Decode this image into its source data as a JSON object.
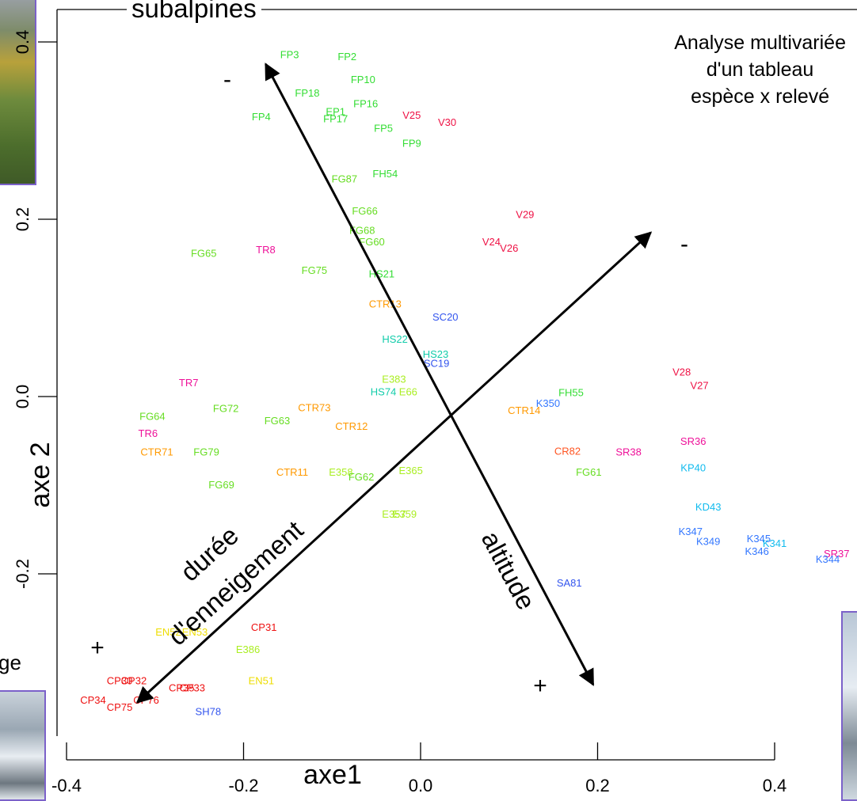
{
  "chart_data": {
    "type": "scatter",
    "xlabel": "axe1",
    "ylabel": "axe 2",
    "xlim": [
      -0.4,
      0.5
    ],
    "ylim": [
      -0.36,
      0.42
    ],
    "x_ticks": [
      -0.4,
      -0.2,
      0.0,
      0.2,
      0.4
    ],
    "x_tick_labels": [
      "-0.4",
      "-0.2",
      "0.0",
      "0.2",
      "0.4"
    ],
    "y_ticks": [
      -0.2,
      0.0,
      0.2,
      0.4
    ],
    "y_tick_labels": [
      "-0.2",
      "0.0",
      "0.2",
      "0.4"
    ],
    "grid": false,
    "annotation_top": "subalpines",
    "annotation_right": "Analyse multivariée\nd'un tableau\nespèce x relevé",
    "annotation_left_fragment": "ge",
    "arrows": [
      {
        "name": "altitude",
        "label": "altitude",
        "from": [
          0.195,
          -0.325
        ],
        "to": [
          -0.175,
          0.375
        ],
        "head_at": "both",
        "sign_start": "+",
        "sign_end": "-"
      },
      {
        "name": "enneigement",
        "label_line1": "durée",
        "label_line2": "d'enneigement",
        "from": [
          -0.32,
          -0.345
        ],
        "to": [
          0.26,
          0.185
        ],
        "head_at": "both",
        "sign_start": "+",
        "sign_end": "-"
      }
    ],
    "point_labels": [
      {
        "label": "FP3",
        "x": -0.148,
        "y": 0.386,
        "color": "#33dd33"
      },
      {
        "label": "FP2",
        "x": -0.083,
        "y": 0.384,
        "color": "#33dd33"
      },
      {
        "label": "FP18",
        "x": -0.128,
        "y": 0.343,
        "color": "#33dd33"
      },
      {
        "label": "FP10",
        "x": -0.065,
        "y": 0.358,
        "color": "#33dd33"
      },
      {
        "label": "EP1",
        "x": -0.096,
        "y": 0.322,
        "color": "#33dd33"
      },
      {
        "label": "FP16",
        "x": -0.062,
        "y": 0.331,
        "color": "#33dd33"
      },
      {
        "label": "FP17",
        "x": -0.096,
        "y": 0.314,
        "color": "#33dd33"
      },
      {
        "label": "FP4",
        "x": -0.18,
        "y": 0.316,
        "color": "#33dd33"
      },
      {
        "label": "FP5",
        "x": -0.042,
        "y": 0.303,
        "color": "#33dd33"
      },
      {
        "label": "V25",
        "x": -0.01,
        "y": 0.318,
        "color": "#ee1144"
      },
      {
        "label": "V30",
        "x": 0.03,
        "y": 0.31,
        "color": "#ee1144"
      },
      {
        "label": "FP9",
        "x": -0.01,
        "y": 0.286,
        "color": "#33dd33"
      },
      {
        "label": "FG87",
        "x": -0.086,
        "y": 0.246,
        "color": "#66dd22"
      },
      {
        "label": "FH54",
        "x": -0.04,
        "y": 0.252,
        "color": "#33dd33"
      },
      {
        "label": "FG66",
        "x": -0.063,
        "y": 0.21,
        "color": "#66dd22"
      },
      {
        "label": "V29",
        "x": 0.118,
        "y": 0.206,
        "color": "#ee1144"
      },
      {
        "label": "FG68",
        "x": -0.066,
        "y": 0.188,
        "color": "#66dd22"
      },
      {
        "label": "FG60",
        "x": -0.055,
        "y": 0.175,
        "color": "#66dd22"
      },
      {
        "label": "V24",
        "x": 0.08,
        "y": 0.175,
        "color": "#ee1144"
      },
      {
        "label": "V26",
        "x": 0.1,
        "y": 0.168,
        "color": "#ee1144"
      },
      {
        "label": "TR8",
        "x": -0.175,
        "y": 0.166,
        "color": "#ee1199"
      },
      {
        "label": "FG65",
        "x": -0.245,
        "y": 0.162,
        "color": "#66dd22"
      },
      {
        "label": "FG75",
        "x": -0.12,
        "y": 0.143,
        "color": "#66dd22"
      },
      {
        "label": "HS21",
        "x": -0.044,
        "y": 0.139,
        "color": "#33dd33"
      },
      {
        "label": "CTR13",
        "x": -0.04,
        "y": 0.105,
        "color": "#ff9900"
      },
      {
        "label": "SC20",
        "x": 0.028,
        "y": 0.09,
        "color": "#3355ee"
      },
      {
        "label": "HS22",
        "x": -0.029,
        "y": 0.065,
        "color": "#11ccaa"
      },
      {
        "label": "HS23",
        "x": 0.017,
        "y": 0.048,
        "color": "#11ccaa"
      },
      {
        "label": "SC19",
        "x": 0.018,
        "y": 0.038,
        "color": "#3355ee"
      },
      {
        "label": "E383",
        "x": -0.03,
        "y": 0.02,
        "color": "#aaee22"
      },
      {
        "label": "HS74",
        "x": -0.042,
        "y": 0.006,
        "color": "#11ccaa"
      },
      {
        "label": "E66",
        "x": -0.014,
        "y": 0.006,
        "color": "#aaee22"
      },
      {
        "label": "TR7",
        "x": -0.262,
        "y": 0.016,
        "color": "#ee1199"
      },
      {
        "label": "V28",
        "x": 0.295,
        "y": 0.028,
        "color": "#ee1144"
      },
      {
        "label": "V27",
        "x": 0.315,
        "y": 0.013,
        "color": "#ee1144"
      },
      {
        "label": "FH55",
        "x": 0.17,
        "y": 0.005,
        "color": "#33dd33"
      },
      {
        "label": "K350",
        "x": 0.144,
        "y": -0.007,
        "color": "#3377ff"
      },
      {
        "label": "CTR14",
        "x": 0.117,
        "y": -0.015,
        "color": "#ff9900"
      },
      {
        "label": "CTR73",
        "x": -0.12,
        "y": -0.012,
        "color": "#ff9900"
      },
      {
        "label": "FG72",
        "x": -0.22,
        "y": -0.013,
        "color": "#66dd22"
      },
      {
        "label": "FG64",
        "x": -0.303,
        "y": -0.022,
        "color": "#66dd22"
      },
      {
        "label": "FG63",
        "x": -0.162,
        "y": -0.027,
        "color": "#66dd22"
      },
      {
        "label": "CTR12",
        "x": -0.078,
        "y": -0.033,
        "color": "#ff9900"
      },
      {
        "label": "TR6",
        "x": -0.308,
        "y": -0.041,
        "color": "#ee1199"
      },
      {
        "label": "SR36",
        "x": 0.308,
        "y": -0.05,
        "color": "#ee1199"
      },
      {
        "label": "CTR71",
        "x": -0.298,
        "y": -0.062,
        "color": "#ff9900"
      },
      {
        "label": "FG79",
        "x": -0.242,
        "y": -0.062,
        "color": "#66dd22"
      },
      {
        "label": "CR82",
        "x": 0.166,
        "y": -0.061,
        "color": "#ff5522"
      },
      {
        "label": "SR38",
        "x": 0.235,
        "y": -0.062,
        "color": "#ee1199"
      },
      {
        "label": "KP40",
        "x": 0.308,
        "y": -0.08,
        "color": "#11bbee"
      },
      {
        "label": "FG61",
        "x": 0.19,
        "y": -0.085,
        "color": "#66dd22"
      },
      {
        "label": "CTR11",
        "x": -0.145,
        "y": -0.085,
        "color": "#ff9900"
      },
      {
        "label": "E358",
        "x": -0.09,
        "y": -0.085,
        "color": "#aaee22"
      },
      {
        "label": "FG62",
        "x": -0.067,
        "y": -0.09,
        "color": "#66dd22"
      },
      {
        "label": "E365",
        "x": -0.011,
        "y": -0.083,
        "color": "#aaee22"
      },
      {
        "label": "FG69",
        "x": -0.225,
        "y": -0.099,
        "color": "#66dd22"
      },
      {
        "label": "KD43",
        "x": 0.325,
        "y": -0.124,
        "color": "#11bbee"
      },
      {
        "label": "E357",
        "x": -0.03,
        "y": -0.132,
        "color": "#aaee22"
      },
      {
        "label": "E359",
        "x": -0.018,
        "y": -0.132,
        "color": "#aaee22"
      },
      {
        "label": "K347",
        "x": 0.305,
        "y": -0.152,
        "color": "#3377ff"
      },
      {
        "label": "K349",
        "x": 0.325,
        "y": -0.163,
        "color": "#3377ff"
      },
      {
        "label": "K345",
        "x": 0.382,
        "y": -0.16,
        "color": "#3377ff"
      },
      {
        "label": "K341",
        "x": 0.4,
        "y": -0.165,
        "color": "#11bbee"
      },
      {
        "label": "K346",
        "x": 0.38,
        "y": -0.174,
        "color": "#3377ff"
      },
      {
        "label": "SR37",
        "x": 0.47,
        "y": -0.177,
        "color": "#ee1199"
      },
      {
        "label": "K344",
        "x": 0.46,
        "y": -0.183,
        "color": "#3377ff"
      },
      {
        "label": "SA81",
        "x": 0.168,
        "y": -0.21,
        "color": "#3355ee"
      },
      {
        "label": "CP31",
        "x": -0.177,
        "y": -0.26,
        "color": "#ee1111"
      },
      {
        "label": "EN52",
        "x": -0.285,
        "y": -0.265,
        "color": "#eedd00"
      },
      {
        "label": "EN53",
        "x": -0.255,
        "y": -0.265,
        "color": "#eedd00"
      },
      {
        "label": "E386",
        "x": -0.195,
        "y": -0.285,
        "color": "#aaee22"
      },
      {
        "label": "EN51",
        "x": -0.18,
        "y": -0.32,
        "color": "#eedd00"
      },
      {
        "label": "CP30",
        "x": -0.34,
        "y": -0.32,
        "color": "#ee1111"
      },
      {
        "label": "CP32",
        "x": -0.324,
        "y": -0.32,
        "color": "#ee1111"
      },
      {
        "label": "CP33",
        "x": -0.258,
        "y": -0.328,
        "color": "#ee1111"
      },
      {
        "label": "CP35",
        "x": -0.27,
        "y": -0.328,
        "color": "#ee1111"
      },
      {
        "label": "CP34",
        "x": -0.37,
        "y": -0.342,
        "color": "#ee1111"
      },
      {
        "label": "CP76",
        "x": -0.31,
        "y": -0.342,
        "color": "#ee1111"
      },
      {
        "label": "CP75",
        "x": -0.34,
        "y": -0.35,
        "color": "#ee1111"
      },
      {
        "label": "SH78",
        "x": -0.24,
        "y": -0.355,
        "color": "#3355ee"
      }
    ]
  }
}
